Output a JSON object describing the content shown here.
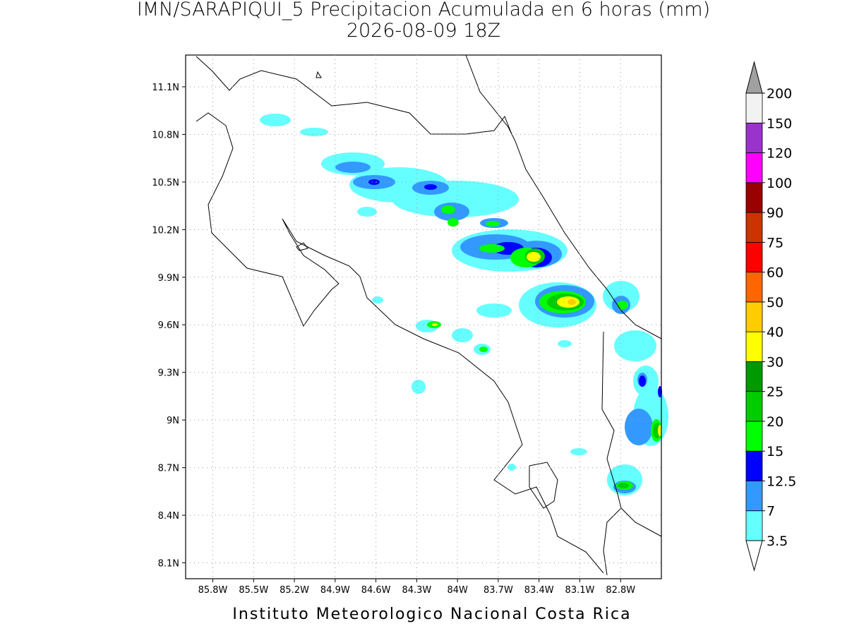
{
  "title": "IMN/SARAPIQUI_5 Precipitacion Acumulada en 6 horas (mm)",
  "subtitle": "2026-08-09 18Z",
  "footer": "Instituto Meteorologico Nacional Costa Rica",
  "map": {
    "lonlim": [
      -86.0,
      -82.5
    ],
    "latlim": [
      8.0,
      11.3
    ],
    "grid": true,
    "lonticks": [
      {
        "value": -85.8,
        "label": "85.8W"
      },
      {
        "value": -85.5,
        "label": "85.5W"
      },
      {
        "value": -85.2,
        "label": "85.2W"
      },
      {
        "value": -84.9,
        "label": "84.9W"
      },
      {
        "value": -84.6,
        "label": "84.6W"
      },
      {
        "value": -84.3,
        "label": "84.3W"
      },
      {
        "value": -84.0,
        "label": "84W"
      },
      {
        "value": -83.7,
        "label": "83.7W"
      },
      {
        "value": -83.4,
        "label": "83.4W"
      },
      {
        "value": -83.1,
        "label": "83.1W"
      },
      {
        "value": -82.8,
        "label": "82.8W"
      }
    ],
    "latticks": [
      {
        "value": 11.1,
        "label": "11.1N"
      },
      {
        "value": 10.8,
        "label": "10.8N"
      },
      {
        "value": 10.5,
        "label": "10.5N"
      },
      {
        "value": 10.2,
        "label": "10.2N"
      },
      {
        "value": 9.9,
        "label": "9.9N"
      },
      {
        "value": 9.6,
        "label": "9.6N"
      },
      {
        "value": 9.3,
        "label": "9.3N"
      },
      {
        "value": 9.0,
        "label": "9N"
      },
      {
        "value": 8.7,
        "label": "8.7N"
      },
      {
        "value": 8.4,
        "label": "8.4N"
      },
      {
        "value": 8.1,
        "label": "8.1N"
      }
    ]
  },
  "colorbar": {
    "levels": [
      3.5,
      7,
      12.5,
      15,
      20,
      25,
      30,
      40,
      50,
      60,
      75,
      90,
      100,
      120,
      150,
      200
    ],
    "colors": [
      "#66ffff",
      "#3399ff",
      "#0000ff",
      "#00ff00",
      "#00cc00",
      "#009900",
      "#ffff00",
      "#ffcc00",
      "#ff6600",
      "#ff0000",
      "#cc3300",
      "#990000",
      "#ff00ff",
      "#9933cc",
      "#f2f2f2"
    ],
    "under_color": "#ffffff",
    "over_color": "#a0a0a0"
  }
}
